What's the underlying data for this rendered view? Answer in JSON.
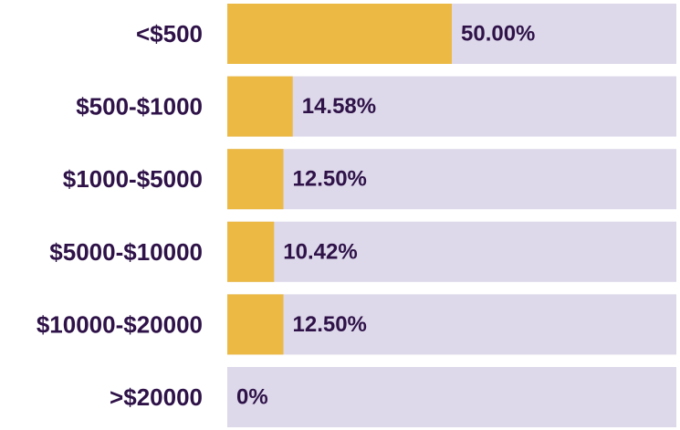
{
  "chart_data": {
    "type": "bar",
    "orientation": "horizontal",
    "categories": [
      "<$500",
      "$500-$1000",
      "$1000-$5000",
      "$5000-$10000",
      "$10000-$20000",
      ">$20000"
    ],
    "values": [
      50.0,
      14.58,
      12.5,
      10.42,
      12.5,
      0
    ],
    "value_labels": [
      "50.00%",
      "14.58%",
      "12.50%",
      "10.42%",
      "12.50%",
      "0%"
    ],
    "xlim": [
      0,
      100
    ],
    "title": "",
    "xlabel": "",
    "ylabel": "",
    "grid": false,
    "legend": "none",
    "colors": {
      "bar": "#ebb944",
      "track": "#ddd8ea",
      "text": "#2e1248"
    }
  }
}
